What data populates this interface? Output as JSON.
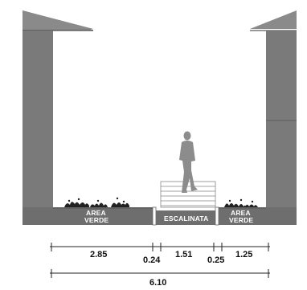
{
  "labels": {
    "area_verde_left": [
      "AREA",
      "VERDE"
    ],
    "escalinata": "ESCALINATA",
    "area_verde_right": [
      "AREA",
      "VERDE"
    ]
  },
  "dimensions": {
    "segments": [
      "2.85",
      "0.24",
      "1.51",
      "0.25",
      "1.25"
    ],
    "total": "6.10"
  },
  "colors": {
    "wall": "#7a7a7a",
    "roof": "#8a8a8a",
    "ground": "#6e6e6e",
    "figure": "#8c8c8c",
    "line": "#222222"
  }
}
